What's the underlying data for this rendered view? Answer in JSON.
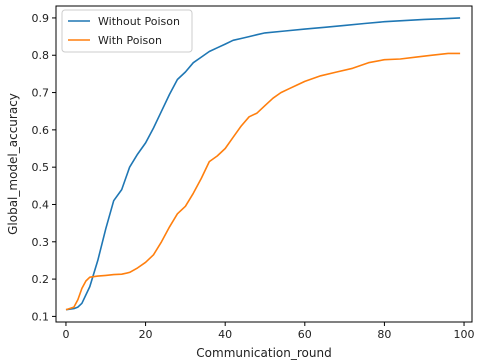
{
  "chart_data": {
    "type": "line",
    "xlabel": "Communication_round",
    "ylabel": "Global_model_accuracy",
    "xlim": [
      -2.5,
      102
    ],
    "ylim": [
      0.085,
      0.932
    ],
    "xticks": [
      0,
      20,
      40,
      60,
      80,
      100
    ],
    "yticks": [
      0.1,
      0.2,
      0.3,
      0.4,
      0.5,
      0.6,
      0.7,
      0.8,
      0.9
    ],
    "xtick_labels": [
      "0",
      "20",
      "40",
      "60",
      "80",
      "100"
    ],
    "ytick_labels": [
      "0.1",
      "0.2",
      "0.3",
      "0.4",
      "0.5",
      "0.6",
      "0.7",
      "0.8",
      "0.9"
    ],
    "grid": false,
    "legend_placement": "top-left",
    "series": [
      {
        "name": "Without Poison",
        "color": "#1f77b4",
        "x": [
          0,
          2,
          3,
          4,
          6,
          8,
          10,
          12,
          14,
          16,
          18,
          20,
          22,
          24,
          26,
          28,
          30,
          32,
          34,
          36,
          38,
          40,
          42,
          44,
          46,
          48,
          50,
          55,
          60,
          65,
          70,
          75,
          80,
          85,
          90,
          95,
          99
        ],
        "y": [
          0.118,
          0.121,
          0.125,
          0.135,
          0.18,
          0.25,
          0.335,
          0.41,
          0.44,
          0.5,
          0.535,
          0.565,
          0.605,
          0.65,
          0.695,
          0.735,
          0.755,
          0.78,
          0.795,
          0.81,
          0.82,
          0.83,
          0.84,
          0.845,
          0.85,
          0.855,
          0.86,
          0.865,
          0.87,
          0.875,
          0.88,
          0.885,
          0.89,
          0.893,
          0.896,
          0.898,
          0.9
        ]
      },
      {
        "name": "With Poison",
        "color": "#ff7f0e",
        "x": [
          0,
          2,
          3,
          4,
          5,
          6,
          8,
          10,
          12,
          14,
          16,
          18,
          20,
          22,
          24,
          26,
          28,
          30,
          32,
          34,
          36,
          38,
          40,
          42,
          44,
          46,
          48,
          50,
          52,
          54,
          56,
          58,
          60,
          64,
          68,
          72,
          76,
          80,
          84,
          88,
          92,
          96,
          99
        ],
        "y": [
          0.118,
          0.125,
          0.145,
          0.175,
          0.195,
          0.205,
          0.208,
          0.21,
          0.212,
          0.213,
          0.218,
          0.23,
          0.245,
          0.265,
          0.3,
          0.34,
          0.375,
          0.395,
          0.43,
          0.47,
          0.515,
          0.53,
          0.55,
          0.58,
          0.61,
          0.635,
          0.645,
          0.665,
          0.685,
          0.7,
          0.71,
          0.72,
          0.73,
          0.745,
          0.755,
          0.765,
          0.78,
          0.788,
          0.79,
          0.795,
          0.8,
          0.805,
          0.805
        ]
      }
    ]
  }
}
